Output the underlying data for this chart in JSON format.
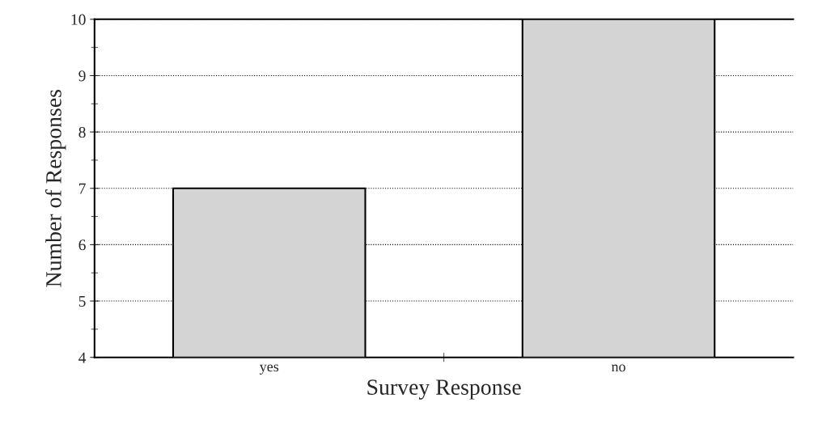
{
  "chart_data": {
    "type": "bar",
    "xlabel": "Survey Response",
    "ylabel": "Number of Responses",
    "categories": [
      "yes",
      "no"
    ],
    "values": [
      7,
      10
    ],
    "color": "#d4d4d4",
    "ylim": [
      4,
      10
    ],
    "yticks": [
      4,
      5,
      6,
      7,
      8,
      9,
      10
    ],
    "grid": "y"
  }
}
